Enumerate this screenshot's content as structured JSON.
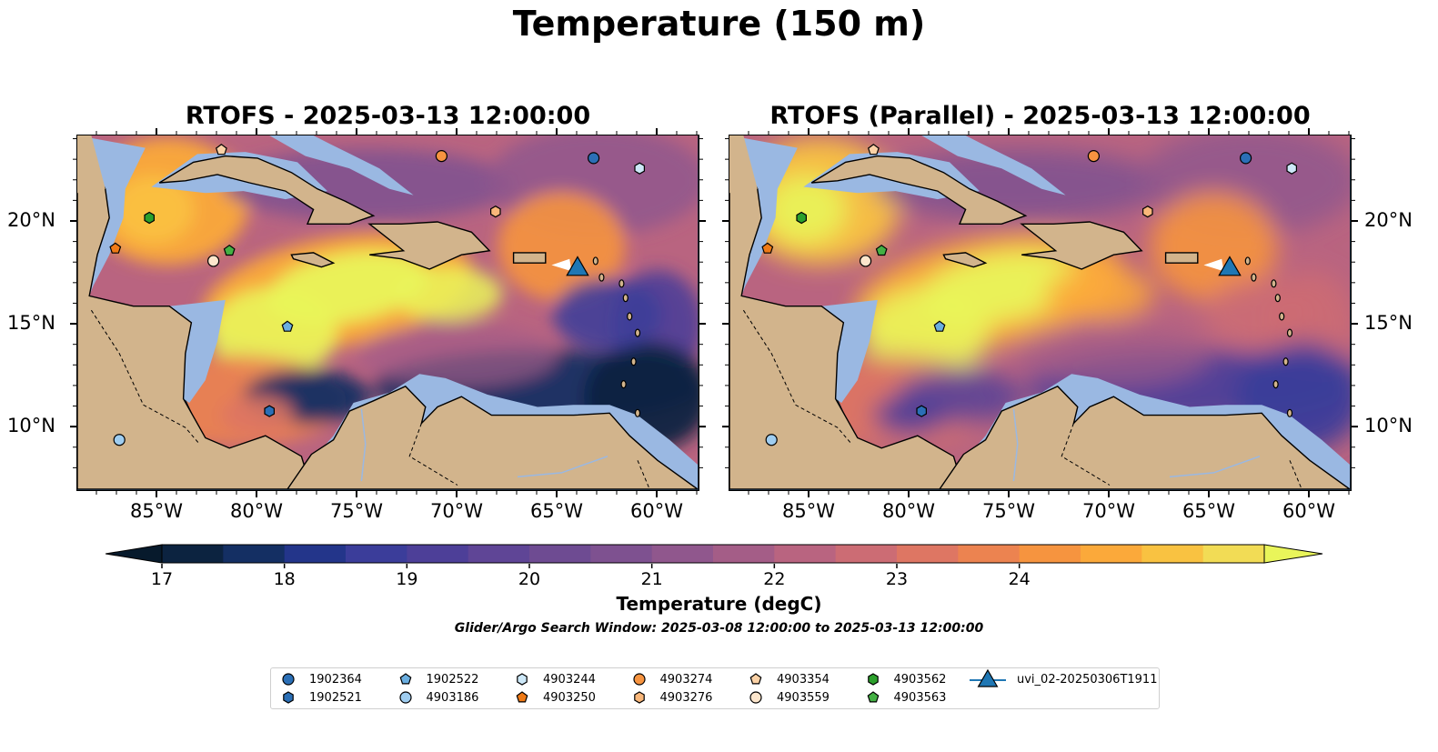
{
  "figure": {
    "suptitle": "Temperature (150 m)",
    "panels": [
      {
        "title": "RTOFS - 2025-03-13 12:00:00",
        "variant": "rtofs"
      },
      {
        "title": "RTOFS (Parallel) - 2025-03-13 12:00:00",
        "variant": "parallel"
      }
    ],
    "lon_ticks": [
      "85°W",
      "80°W",
      "75°W",
      "70°W",
      "65°W",
      "60°W"
    ],
    "lat_ticks": [
      "20°N",
      "15°N",
      "10°N"
    ],
    "colorbar": {
      "label": "Temperature (degC)",
      "ticks": [
        "17",
        "18",
        "19",
        "20",
        "21",
        "22",
        "23",
        "24"
      ],
      "colors": [
        "#0c2340",
        "#142f63",
        "#23358a",
        "#3b3d9a",
        "#4d3f98",
        "#5f4596",
        "#6e4b92",
        "#7e5190",
        "#90578d",
        "#a45d87",
        "#b96480",
        "#cc6c74",
        "#de7663",
        "#ec8350",
        "#f6943f",
        "#fba93a",
        "#f9c241",
        "#f2dc55"
      ],
      "under_color": "#071a2c",
      "over_color": "#e9f55a"
    },
    "search_window": "Glider/Argo Search Window: 2025-03-08 12:00:00 to 2025-03-13 12:00:00",
    "colors": {
      "land": "#d2b48c",
      "shelf": "#9ab8e2",
      "deep": "#05202f"
    }
  },
  "legend": [
    {
      "label": "1902364",
      "marker": "circle",
      "color": "#2b6fb6"
    },
    {
      "label": "1902521",
      "marker": "hexagon",
      "color": "#2b6fb6"
    },
    {
      "label": "1902522",
      "marker": "pentagon",
      "color": "#6aaee0"
    },
    {
      "label": "4903186",
      "marker": "circle",
      "color": "#9fcdf0"
    },
    {
      "label": "4903244",
      "marker": "hexagon",
      "color": "#cde8f8"
    },
    {
      "label": "4903250",
      "marker": "pentagon",
      "color": "#ef7a16"
    },
    {
      "label": "4903274",
      "marker": "circle",
      "color": "#f79440"
    },
    {
      "label": "4903276",
      "marker": "hexagon",
      "color": "#f9b77a"
    },
    {
      "label": "4903354",
      "marker": "pentagon",
      "color": "#fcd2a6"
    },
    {
      "label": "4903559",
      "marker": "circle",
      "color": "#fde6cc"
    },
    {
      "label": "4903562",
      "marker": "hexagon",
      "color": "#2ca02c"
    },
    {
      "label": "4903563",
      "marker": "pentagon",
      "color": "#44b044"
    },
    {
      "label": "uvi_02-20250306T1911",
      "marker": "triangle",
      "color": "#1f77b4"
    }
  ],
  "observations": [
    {
      "id": "1902364",
      "marker": "circle",
      "color": "#2b6fb6",
      "lon": -63.2,
      "lat": 23.1
    },
    {
      "id": "1902521",
      "marker": "hexagon",
      "color": "#2b6fb6",
      "lon": -79.4,
      "lat": 10.8
    },
    {
      "id": "1902522",
      "marker": "pentagon",
      "color": "#6aaee0",
      "lon": -78.5,
      "lat": 14.9
    },
    {
      "id": "4903186",
      "marker": "circle",
      "color": "#9fcdf0",
      "lon": -86.9,
      "lat": 9.4
    },
    {
      "id": "4903244",
      "marker": "hexagon",
      "color": "#cde8f8",
      "lon": -60.9,
      "lat": 22.6
    },
    {
      "id": "4903250",
      "marker": "pentagon",
      "color": "#ef7a16",
      "lon": -87.1,
      "lat": 18.7
    },
    {
      "id": "4903274",
      "marker": "circle",
      "color": "#f79440",
      "lon": -70.8,
      "lat": 23.2
    },
    {
      "id": "4903276",
      "marker": "hexagon",
      "color": "#f9b77a",
      "lon": -68.1,
      "lat": 20.5
    },
    {
      "id": "4903354",
      "marker": "pentagon",
      "color": "#fcd2a6",
      "lon": -81.8,
      "lat": 23.5
    },
    {
      "id": "4903559",
      "marker": "circle",
      "color": "#fde6cc",
      "lon": -82.2,
      "lat": 18.1
    },
    {
      "id": "4903562",
      "marker": "hexagon",
      "color": "#2ca02c",
      "lon": -85.4,
      "lat": 20.2
    },
    {
      "id": "4903563",
      "marker": "pentagon",
      "color": "#44b044",
      "lon": -81.4,
      "lat": 18.6
    },
    {
      "id": "uvi_02-20250306T1911",
      "marker": "triangle",
      "color": "#1f77b4",
      "lon": -64.0,
      "lat": 17.7
    }
  ]
}
